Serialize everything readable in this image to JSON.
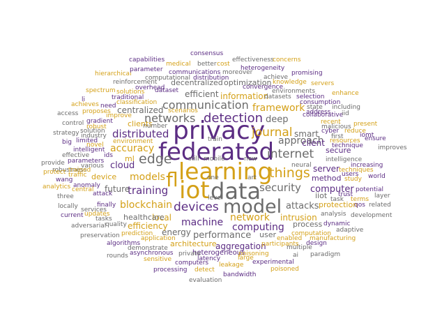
{
  "palette": {
    "purple": "#5b2c83",
    "gold": "#d4a017",
    "gray": "#6b6b6b"
  },
  "words": [
    {
      "text": "privacy",
      "color": "purple"
    },
    {
      "text": "federated",
      "color": "purple"
    },
    {
      "text": "learning",
      "color": "gold"
    },
    {
      "text": "fl",
      "color": "gold"
    },
    {
      "text": "iot",
      "color": "gold"
    },
    {
      "text": "data",
      "color": "gray"
    },
    {
      "text": "model",
      "color": "gray"
    },
    {
      "text": "detection",
      "color": "purple"
    },
    {
      "text": "communication",
      "color": "gray"
    },
    {
      "text": "edge",
      "color": "gray"
    },
    {
      "text": "things",
      "color": "gold"
    },
    {
      "text": "internet",
      "color": "gray"
    },
    {
      "text": "devices",
      "color": "purple"
    },
    {
      "text": "journal",
      "color": "gold"
    },
    {
      "text": "networks",
      "color": "gray"
    },
    {
      "text": "distributed",
      "color": "purple"
    },
    {
      "text": "security",
      "color": "gray"
    },
    {
      "text": "training",
      "color": "purple"
    },
    {
      "text": "framework",
      "color": "gold"
    },
    {
      "text": "approach",
      "color": "gray"
    },
    {
      "text": "network",
      "color": "gold"
    },
    {
      "text": "models",
      "color": "gold"
    },
    {
      "text": "accuracy",
      "color": "gold"
    },
    {
      "text": "machine",
      "color": "purple"
    },
    {
      "text": "computing",
      "color": "purple"
    },
    {
      "text": "blockchain",
      "color": "gold"
    },
    {
      "text": "performance",
      "color": "gray"
    },
    {
      "text": "cloud",
      "color": "purple"
    },
    {
      "text": "deep",
      "color": "gray"
    },
    {
      "text": "attacks",
      "color": "gray"
    },
    {
      "text": "computer",
      "color": "purple"
    },
    {
      "text": "efficient",
      "color": "gray"
    },
    {
      "text": "smart",
      "color": "gray"
    },
    {
      "text": "intrusion",
      "color": "gold"
    },
    {
      "text": "information",
      "color": "gold"
    },
    {
      "text": "centralized",
      "color": "gray"
    },
    {
      "text": "server",
      "color": "purple"
    },
    {
      "text": "client",
      "color": "purple"
    },
    {
      "text": "future",
      "color": "gray"
    },
    {
      "text": "local",
      "color": "gold"
    },
    {
      "text": "aggregation",
      "color": "purple"
    },
    {
      "text": "energy",
      "color": "gray"
    },
    {
      "text": "efficiency",
      "color": "gold"
    },
    {
      "text": "architecture",
      "color": "gold"
    },
    {
      "text": "method",
      "color": "purple"
    },
    {
      "text": "process",
      "color": "gray"
    },
    {
      "text": "secure",
      "color": "purple"
    },
    {
      "text": "decentralized",
      "color": "gray"
    },
    {
      "text": "optimization",
      "color": "gray"
    },
    {
      "text": "user",
      "color": "gray"
    },
    {
      "text": "healthcare",
      "color": "gray"
    },
    {
      "text": "iiot",
      "color": "gray"
    },
    {
      "text": "protection",
      "color": "gold"
    },
    {
      "text": "device",
      "color": "gold"
    },
    {
      "text": "clients",
      "color": "gold"
    },
    {
      "text": "ml",
      "color": "gold"
    },
    {
      "text": "heterogeneous",
      "color": "purple"
    },
    {
      "text": "computational",
      "color": "gray"
    },
    {
      "text": "distribution",
      "color": "purple"
    },
    {
      "text": "communications",
      "color": "purple"
    },
    {
      "text": "moreover",
      "color": "gray"
    },
    {
      "text": "convergence",
      "color": "purple"
    },
    {
      "text": "achieve",
      "color": "gray"
    },
    {
      "text": "datasets",
      "color": "gray"
    },
    {
      "text": "selection",
      "color": "purple"
    },
    {
      "text": "environments",
      "color": "gray"
    },
    {
      "text": "consumption",
      "color": "purple"
    },
    {
      "text": "neural",
      "color": "gray"
    },
    {
      "text": "intelligence",
      "color": "gray"
    },
    {
      "text": "increasing",
      "color": "purple"
    },
    {
      "text": "techniques",
      "color": "gold"
    },
    {
      "text": "study",
      "color": "gold"
    },
    {
      "text": "potential",
      "color": "purple"
    },
    {
      "text": "trust",
      "color": "purple"
    },
    {
      "text": "users",
      "color": "purple"
    },
    {
      "text": "world",
      "color": "purple"
    },
    {
      "text": "task",
      "color": "gray"
    },
    {
      "text": "qos",
      "color": "purple"
    },
    {
      "text": "related",
      "color": "gray"
    },
    {
      "text": "layer",
      "color": "gray"
    },
    {
      "text": "analysis",
      "color": "gray"
    },
    {
      "text": "development",
      "color": "gray"
    },
    {
      "text": "adaptive",
      "color": "gray"
    },
    {
      "text": "manufacturing",
      "color": "gold"
    },
    {
      "text": "design",
      "color": "purple"
    },
    {
      "text": "multiple",
      "color": "gray"
    },
    {
      "text": "paradigm",
      "color": "gray"
    },
    {
      "text": "ai",
      "color": "gray"
    },
    {
      "text": "participants",
      "color": "gold"
    },
    {
      "text": "enabled",
      "color": "gold"
    },
    {
      "text": "computation",
      "color": "gold"
    },
    {
      "text": "experimental",
      "color": "purple"
    },
    {
      "text": "poisoning",
      "color": "gold"
    },
    {
      "text": "poisoned",
      "color": "gold"
    },
    {
      "text": "large",
      "color": "gold"
    },
    {
      "text": "leakage",
      "color": "gold"
    },
    {
      "text": "bandwidth",
      "color": "purple"
    },
    {
      "text": "evaluation",
      "color": "gray"
    },
    {
      "text": "detect",
      "color": "gold"
    },
    {
      "text": "latency",
      "color": "purple"
    },
    {
      "text": "private",
      "color": "gray"
    },
    {
      "text": "computers",
      "color": "purple"
    },
    {
      "text": "processing",
      "color": "purple"
    },
    {
      "text": "sensitive",
      "color": "gold"
    },
    {
      "text": "asynchronous",
      "color": "purple"
    },
    {
      "text": "rounds",
      "color": "gray"
    },
    {
      "text": "demonstrate",
      "color": "gray"
    },
    {
      "text": "application",
      "color": "gold"
    },
    {
      "text": "prediction",
      "color": "gold"
    },
    {
      "text": "algorithms",
      "color": "purple"
    },
    {
      "text": "preservation",
      "color": "gray"
    },
    {
      "text": "quality",
      "color": "gray"
    },
    {
      "text": "adversarial",
      "color": "gray"
    },
    {
      "text": "tasks",
      "color": "gray"
    },
    {
      "text": "current",
      "color": "purple"
    },
    {
      "text": "services",
      "color": "gray"
    },
    {
      "text": "updates",
      "color": "gold"
    },
    {
      "text": "locally",
      "color": "gray"
    },
    {
      "text": "finally",
      "color": "purple"
    },
    {
      "text": "three",
      "color": "gray"
    },
    {
      "text": "attack",
      "color": "purple"
    },
    {
      "text": "traffic",
      "color": "gold"
    },
    {
      "text": "anomaly",
      "color": "purple"
    },
    {
      "text": "analytics",
      "color": "gold"
    },
    {
      "text": "central",
      "color": "gold"
    },
    {
      "text": "wang",
      "color": "purple"
    },
    {
      "text": "robustness",
      "color": "gray"
    },
    {
      "text": "trained",
      "color": "gold"
    },
    {
      "text": "protect",
      "color": "gold"
    },
    {
      "text": "provide",
      "color": "gray"
    },
    {
      "text": "parameters",
      "color": "purple"
    },
    {
      "text": "effective",
      "color": "gray"
    },
    {
      "text": "various",
      "color": "gray"
    },
    {
      "text": "intelligent",
      "color": "purple"
    },
    {
      "text": "ids",
      "color": "purple"
    },
    {
      "text": "big",
      "color": "purple"
    },
    {
      "text": "limited",
      "color": "purple"
    },
    {
      "text": "novel",
      "color": "gold"
    },
    {
      "text": "industry",
      "color": "gray"
    },
    {
      "text": "solution",
      "color": "gray"
    },
    {
      "text": "robust",
      "color": "gold"
    },
    {
      "text": "strategy",
      "color": "gray"
    },
    {
      "text": "environment",
      "color": "gold"
    },
    {
      "text": "control",
      "color": "gray"
    },
    {
      "text": "access",
      "color": "gray"
    },
    {
      "text": "gradient",
      "color": "purple"
    },
    {
      "text": "number",
      "color": "gray"
    },
    {
      "text": "proposes",
      "color": "gold"
    },
    {
      "text": "improve",
      "color": "gold"
    },
    {
      "text": "scenarios",
      "color": "gold"
    },
    {
      "text": "classification",
      "color": "gold"
    },
    {
      "text": "need",
      "color": "purple"
    },
    {
      "text": "li",
      "color": "purple"
    },
    {
      "text": "traditional",
      "color": "purple"
    },
    {
      "text": "achieves",
      "color": "gold"
    },
    {
      "text": "solutions",
      "color": "gold"
    },
    {
      "text": "overhead",
      "color": "purple"
    },
    {
      "text": "spectrum",
      "color": "gold"
    },
    {
      "text": "reinforcement",
      "color": "gray"
    },
    {
      "text": "hierarchical",
      "color": "gold"
    },
    {
      "text": "parameter",
      "color": "purple"
    },
    {
      "text": "capabilities",
      "color": "purple"
    },
    {
      "text": "medical",
      "color": "gold"
    },
    {
      "text": "better",
      "color": "gray"
    },
    {
      "text": "cost",
      "color": "gold"
    },
    {
      "text": "consensus",
      "color": "purple"
    },
    {
      "text": "effectiveness",
      "color": "gray"
    },
    {
      "text": "concerns",
      "color": "gold"
    },
    {
      "text": "heterogeneity",
      "color": "purple"
    },
    {
      "text": "promising",
      "color": "purple"
    },
    {
      "text": "knowledge",
      "color": "gold"
    },
    {
      "text": "servers",
      "color": "gold"
    },
    {
      "text": "enhance",
      "color": "gold"
    },
    {
      "text": "collaborative",
      "color": "purple"
    },
    {
      "text": "state",
      "color": "gray"
    },
    {
      "text": "including",
      "color": "gray"
    },
    {
      "text": "address",
      "color": "purple"
    },
    {
      "text": "iid",
      "color": "gray"
    },
    {
      "text": "recent",
      "color": "gold"
    },
    {
      "text": "malicious",
      "color": "gray"
    },
    {
      "text": "present",
      "color": "gold"
    },
    {
      "text": "cyber",
      "color": "purple"
    },
    {
      "text": "reduce",
      "color": "gold"
    },
    {
      "text": "first",
      "color": "gray"
    },
    {
      "text": "iomt",
      "color": "purple"
    },
    {
      "text": "ensure",
      "color": "purple"
    },
    {
      "text": "resources",
      "color": "gold"
    },
    {
      "text": "technique",
      "color": "purple"
    },
    {
      "text": "improves",
      "color": "gray"
    },
    {
      "text": "train",
      "color": "gray"
    },
    {
      "text": "still",
      "color": "gray"
    },
    {
      "text": "mobile",
      "color": "gray"
    },
    {
      "text": "new",
      "color": "gray"
    },
    {
      "text": "one",
      "color": "gray"
    },
    {
      "text": "art",
      "color": "gray"
    },
    {
      "text": "level",
      "color": "gray"
    },
    {
      "text": "dataset",
      "color": "purple"
    },
    {
      "text": "terms",
      "color": "gold"
    },
    {
      "text": "dynamic",
      "color": "purple"
    }
  ]
}
